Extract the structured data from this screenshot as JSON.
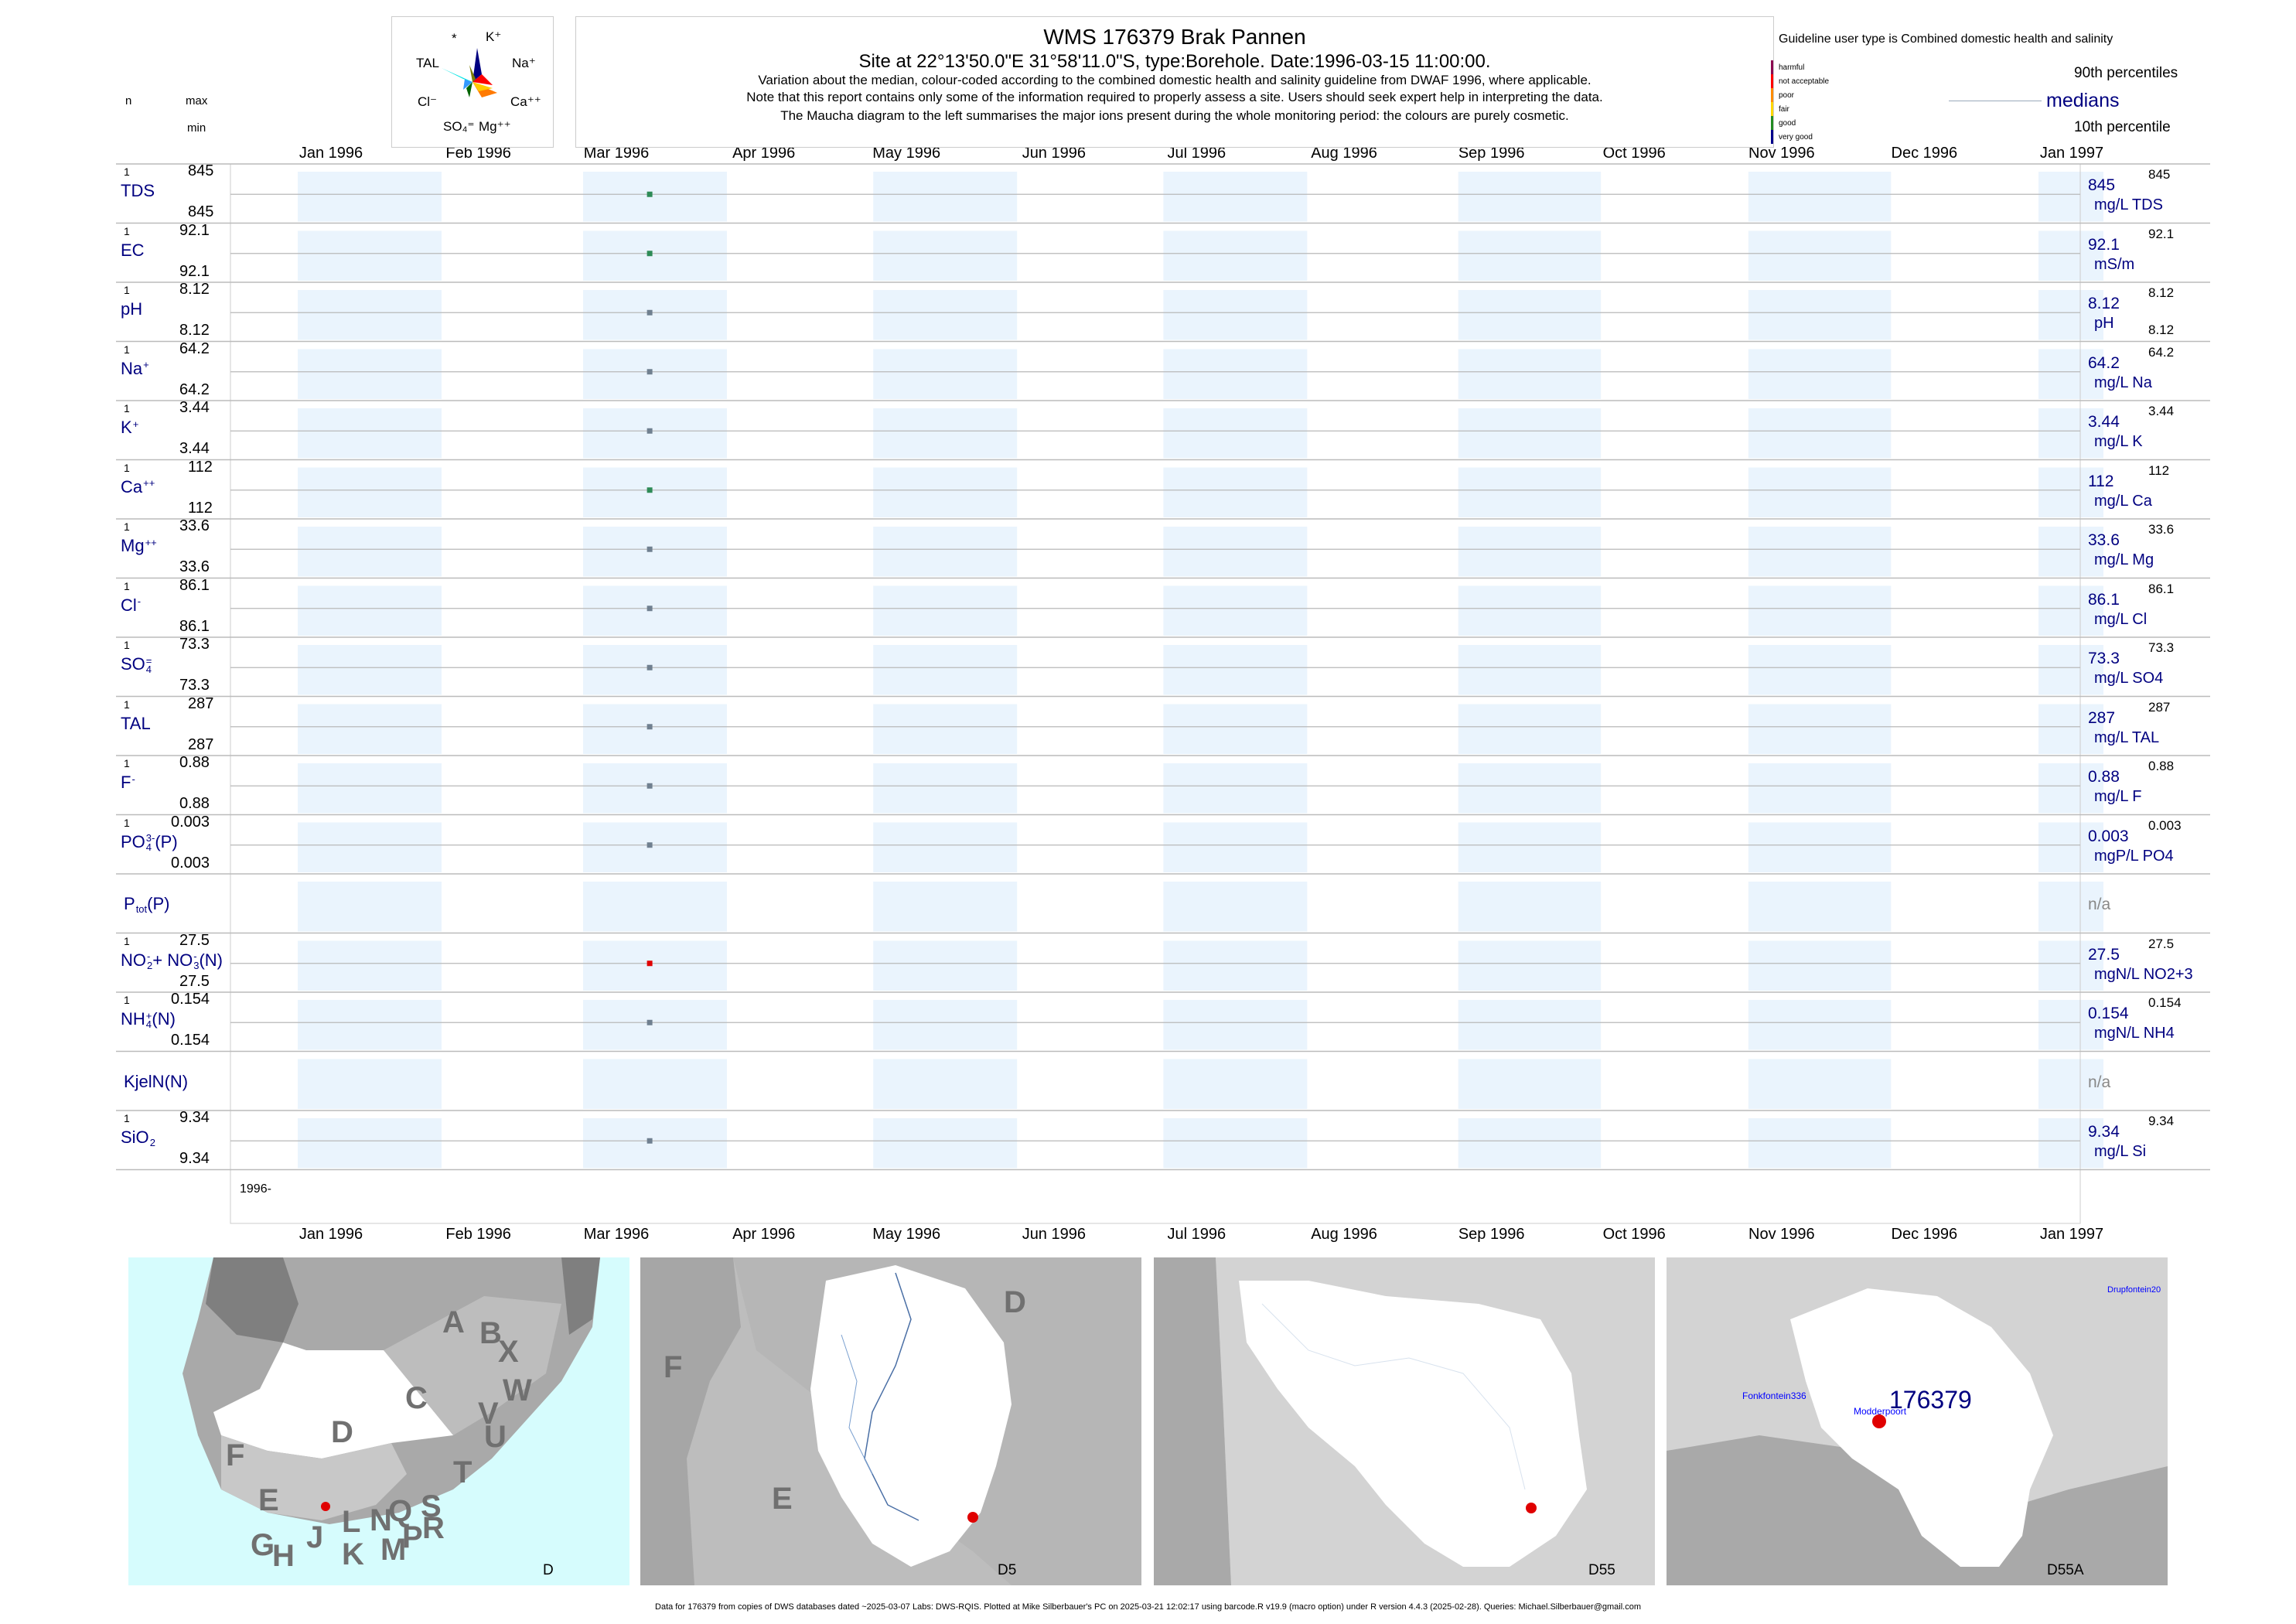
{
  "header": {
    "title": "WMS 176379  Brak Pannen",
    "subtitle": "Site at 22°13'50.0\"E 31°58'11.0\"S, type:Borehole. Date:1996-03-15 11:00:00.",
    "note_lines": [
      "Variation about the median,  colour-coded according to the combined domestic health and salinity guideline from DWAF 1996, where applicable.",
      "Note that this report contains only some of the information required to properly assess a site. Users should seek expert help in interpreting the data.",
      "The Maucha diagram to the left summarises the major ions present during the whole monitoring period: the colours are purely cosmetic."
    ]
  },
  "column_header": {
    "n": "n",
    "max": "max",
    "min": "min"
  },
  "maucha": {
    "labels": [
      "*",
      "K⁺",
      "Na⁺",
      "Ca⁺⁺",
      "Mg⁺⁺",
      "SO₄⁼",
      "Cl⁻",
      "TAL"
    ],
    "colors": [
      "#7c7c00",
      "#000080",
      "#ff0000",
      "#ff8800",
      "#ffcc00",
      "#006400",
      "#3399ff",
      "#00e5e5"
    ]
  },
  "legend": {
    "guideline_text": "Guideline user type is Combined domestic health and salinity",
    "classes": [
      {
        "label": "harmful",
        "color": "#8b0a50"
      },
      {
        "label": "not acceptable",
        "color": "#ff0000"
      },
      {
        "label": "poor",
        "color": "#ff8c00"
      },
      {
        "label": "fair",
        "color": "#ffd700"
      },
      {
        "label": "good",
        "color": "#228b22"
      },
      {
        "label": "very good",
        "color": "#00008b"
      }
    ],
    "p90": "90th percentiles",
    "medians": "medians",
    "p10": "10th percentile"
  },
  "chart_data": {
    "type": "scatter",
    "x_months": [
      "Jan 1996",
      "Feb 1996",
      "Mar 1996",
      "Apr 1996",
      "May 1996",
      "Jun 1996",
      "Jul 1996",
      "Aug 1996",
      "Sep 1996",
      "Oct 1996",
      "Nov 1996",
      "Dec 1996",
      "Jan 1997"
    ],
    "x_range": [
      "1996-01-01",
      "1997-01-01"
    ],
    "sample_date": "1996-03-15",
    "bottom_label": "1996-",
    "shaded_months": [
      "Jan 1996",
      "Mar 1996",
      "May 1996",
      "Jul 1996",
      "Sep 1996",
      "Nov 1996",
      "Jan 1997"
    ],
    "series": [
      {
        "name": "TDS",
        "sup": "",
        "sub": "",
        "n": "1",
        "max": "845",
        "min": "845",
        "median": "845",
        "unit": "mg/L TDS",
        "p90": "845",
        "p10": "",
        "value": 845,
        "color": "#2e8b57"
      },
      {
        "name": "EC",
        "sup": "",
        "sub": "",
        "n": "1",
        "max": "92.1",
        "min": "92.1",
        "median": "92.1",
        "unit": "mS/m",
        "p90": "92.1",
        "p10": "",
        "value": 92.1,
        "color": "#2e8b57"
      },
      {
        "name": "pH",
        "sup": "",
        "sub": "",
        "n": "1",
        "max": "8.12",
        "min": "8.12",
        "median": "8.12",
        "unit": "pH",
        "p90": "8.12",
        "p10": "8.12",
        "value": 8.12,
        "color": "#708090"
      },
      {
        "name": "Na",
        "sup": "+",
        "sub": "",
        "n": "1",
        "max": "64.2",
        "min": "64.2",
        "median": "64.2",
        "unit": "mg/L Na",
        "p90": "64.2",
        "p10": "",
        "value": 64.2,
        "color": "#708090"
      },
      {
        "name": "K",
        "sup": "+",
        "sub": "",
        "n": "1",
        "max": "3.44",
        "min": "3.44",
        "median": "3.44",
        "unit": "mg/L K",
        "p90": "3.44",
        "p10": "",
        "value": 3.44,
        "color": "#708090"
      },
      {
        "name": "Ca",
        "sup": "++",
        "sub": "",
        "n": "1",
        "max": "112",
        "min": "112",
        "median": "112",
        "unit": "mg/L Ca",
        "p90": "112",
        "p10": "",
        "value": 112,
        "color": "#2e8b57"
      },
      {
        "name": "Mg",
        "sup": "++",
        "sub": "",
        "n": "1",
        "max": "33.6",
        "min": "33.6",
        "median": "33.6",
        "unit": "mg/L Mg",
        "p90": "33.6",
        "p10": "",
        "value": 33.6,
        "color": "#708090"
      },
      {
        "name": "Cl",
        "sup": "-",
        "sub": "",
        "n": "1",
        "max": "86.1",
        "min": "86.1",
        "median": "86.1",
        "unit": "mg/L Cl",
        "p90": "86.1",
        "p10": "",
        "value": 86.1,
        "color": "#708090"
      },
      {
        "name": "SO",
        "sup": "=",
        "sub": "4",
        "n": "1",
        "max": "73.3",
        "min": "73.3",
        "median": "73.3",
        "unit": "mg/L SO4",
        "p90": "73.3",
        "p10": "",
        "value": 73.3,
        "color": "#708090"
      },
      {
        "name": "TAL",
        "sup": "",
        "sub": "",
        "n": "1",
        "max": "287",
        "min": "287",
        "median": "287",
        "unit": "mg/L TAL",
        "p90": "287",
        "p10": "",
        "value": 287,
        "color": "#708090"
      },
      {
        "name": "F",
        "sup": "-",
        "sub": "",
        "n": "1",
        "max": "0.88",
        "min": "0.88",
        "median": "0.88",
        "unit": "mg/L F",
        "p90": "0.88",
        "p10": "",
        "value": 0.88,
        "color": "#708090"
      },
      {
        "name": "PO",
        "sup": "3-",
        "sub": "4",
        "suffix": "(P)",
        "n": "1",
        "max": "0.003",
        "min": "0.003",
        "median": "0.003",
        "unit": "mgP/L PO4",
        "p90": "0.003",
        "p10": "",
        "value": 0.003,
        "color": "#708090"
      },
      {
        "name": "P",
        "sup": "",
        "sub": "tot",
        "suffix": "(P)",
        "n": "",
        "max": "",
        "min": "",
        "median": "n/a",
        "unit": "",
        "p90": "",
        "p10": "",
        "value": null,
        "color": ""
      },
      {
        "name": "NO",
        "sup": "-",
        "sub": "2",
        "suffix": "+ NO",
        "sup2": "-",
        "sub2": "3",
        "suffix2": "(N)",
        "n": "1",
        "max": "27.5",
        "min": "27.5",
        "median": "27.5",
        "unit": "mgN/L NO2+3",
        "p90": "27.5",
        "p10": "",
        "value": 27.5,
        "color": "#e00000"
      },
      {
        "name": "NH",
        "sup": "+",
        "sub": "4",
        "suffix": "(N)",
        "n": "1",
        "max": "0.154",
        "min": "0.154",
        "median": "0.154",
        "unit": "mgN/L NH4",
        "p90": "0.154",
        "p10": "",
        "value": 0.154,
        "color": "#708090"
      },
      {
        "name": "KjelN(N)",
        "sup": "",
        "sub": "",
        "n": "",
        "max": "",
        "min": "",
        "median": "n/a",
        "unit": "",
        "p90": "",
        "p10": "",
        "value": null,
        "color": ""
      },
      {
        "name": "SiO",
        "sup": "",
        "sub": "2",
        "n": "1",
        "max": "9.34",
        "min": "9.34",
        "median": "9.34",
        "unit": "mg/L Si",
        "p90": "9.34",
        "p10": "",
        "value": 9.34,
        "color": "#708090"
      }
    ]
  },
  "maps": [
    {
      "code": "D",
      "regions": [
        "A",
        "B",
        "X",
        "W",
        "C",
        "V",
        "U",
        "T",
        "D",
        "F",
        "E",
        "G",
        "H",
        "J",
        "K",
        "L",
        "M",
        "N",
        "P",
        "Q",
        "R",
        "S"
      ]
    },
    {
      "code": "D5",
      "regions": [
        "D",
        "F",
        "E"
      ]
    },
    {
      "code": "D55",
      "regions": []
    },
    {
      "code": "D55A",
      "regions": [],
      "site": "176379",
      "places": [
        "Fonkfontein336",
        "Modderpoort",
        "Drupfontein20"
      ]
    }
  ],
  "footer": "Data for 176379 from copies of DWS databases dated ~2025-03-07 Labs: DWS-RQIS. Plotted at Mike Silberbauer's PC on 2025-03-21 12:02:17 using barcode.R v19.9 (macro option) under R version 4.4.3 (2025-02-28). Queries: Michael.Silberbauer@gmail.com",
  "colors": {
    "shade": "#eaf4fd",
    "navy": "#000080",
    "sea": "#d6fcfd"
  }
}
